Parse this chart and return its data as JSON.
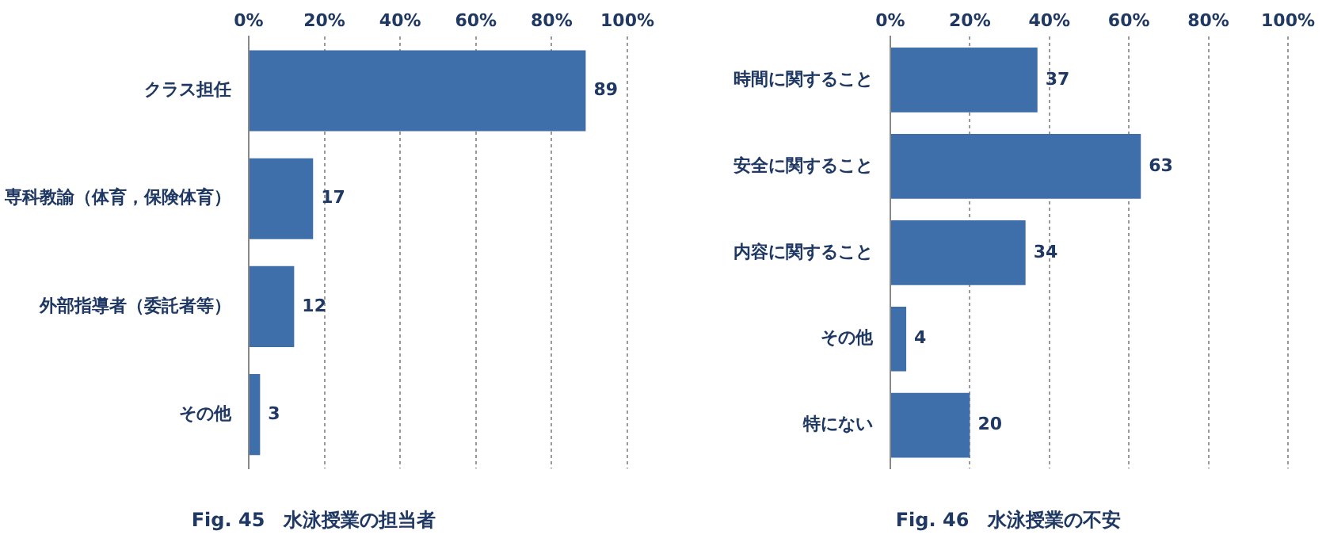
{
  "chart_data": [
    {
      "type": "bar",
      "orientation": "horizontal",
      "title": "Fig. 45　水泳授業の担当者",
      "categories": [
        "クラス担任",
        "専科教諭（体育，保険体育）",
        "外部指導者（委託者等）",
        "その他"
      ],
      "values": [
        89,
        17,
        12,
        3
      ],
      "color": "#3f6faa",
      "xlim": [
        0,
        100
      ],
      "xticks": [
        {
          "value": 0,
          "label": "0%"
        },
        {
          "value": 20,
          "label": "20%"
        },
        {
          "value": 40,
          "label": "40%"
        },
        {
          "value": 60,
          "label": "60%"
        },
        {
          "value": 80,
          "label": "80%"
        },
        {
          "value": 100,
          "label": "100%"
        }
      ],
      "grid": "x",
      "data_labels": true,
      "legend": false
    },
    {
      "type": "bar",
      "orientation": "horizontal",
      "title": "Fig. 46　水泳授業の不安",
      "categories": [
        "時間に関すること",
        "安全に関すること",
        "内容に関すること",
        "その他",
        "特にない"
      ],
      "values": [
        37,
        63,
        34,
        4,
        20
      ],
      "color": "#3f6faa",
      "xlim": [
        0,
        100
      ],
      "xticks": [
        {
          "value": 0,
          "label": "0%"
        },
        {
          "value": 20,
          "label": "20%"
        },
        {
          "value": 40,
          "label": "40%"
        },
        {
          "value": 60,
          "label": "60%"
        },
        {
          "value": 80,
          "label": "80%"
        },
        {
          "value": 100,
          "label": "100%"
        }
      ],
      "grid": "x",
      "data_labels": true,
      "legend": false
    }
  ]
}
